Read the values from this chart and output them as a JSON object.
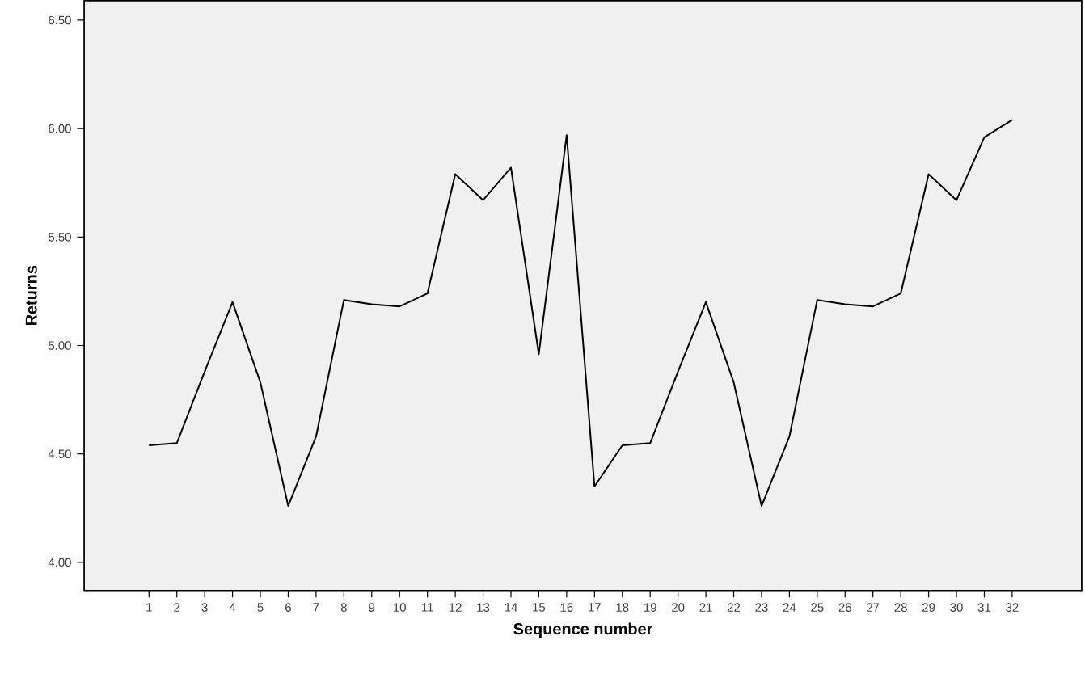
{
  "chart_data": {
    "type": "line",
    "xlabel": "Sequence number",
    "ylabel": "Returns",
    "categories": [
      "1",
      "2",
      "3",
      "4",
      "5",
      "6",
      "7",
      "8",
      "9",
      "10",
      "11",
      "12",
      "13",
      "14",
      "15",
      "16",
      "17",
      "18",
      "19",
      "20",
      "21",
      "22",
      "23",
      "24",
      "25",
      "26",
      "27",
      "28",
      "29",
      "30",
      "31",
      "32"
    ],
    "series": [
      {
        "color": "#000000",
        "values": [
          4.54,
          4.55,
          4.88,
          5.2,
          4.83,
          4.26,
          4.58,
          5.21,
          5.19,
          5.18,
          5.24,
          5.79,
          5.67,
          5.82,
          4.96,
          5.97,
          4.35,
          4.54,
          4.55,
          4.88,
          5.2,
          4.83,
          4.26,
          4.58,
          5.21,
          5.19,
          5.18,
          5.24,
          5.79,
          5.67,
          5.96,
          6.04
        ]
      }
    ],
    "ylim": [
      3.87,
      6.59
    ],
    "yticks": [
      {
        "value": 4,
        "label": "4.00"
      },
      {
        "value": 4.5,
        "label": "4.50"
      },
      {
        "value": 5,
        "label": "5.00"
      },
      {
        "value": 5.5,
        "label": "5.50"
      },
      {
        "value": 6,
        "label": "6.00"
      },
      {
        "value": 6.5,
        "label": "6.50"
      }
    ],
    "grid": false,
    "marker": "none",
    "line_style": "solid"
  }
}
